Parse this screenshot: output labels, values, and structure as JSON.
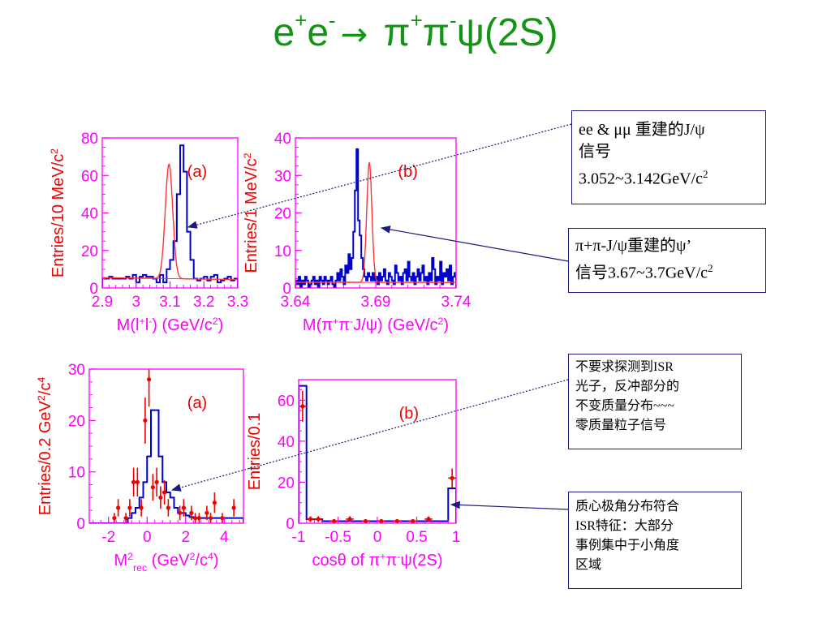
{
  "title": {
    "p1": "e",
    "s1": "+",
    "p2": "e",
    "s2": "-",
    "arrow": "→",
    "p3": " π",
    "s3": "+",
    "p4": "π",
    "s4": "-",
    "p5": "ψ(2S)"
  },
  "annotations": {
    "n1": {
      "l1": "ee & μμ 重建的J/ψ",
      "l2": "信号",
      "l3": "3.052~3.142GeV/c",
      "l3sup": "2"
    },
    "n2": {
      "l1": "π+π-J/ψ重建的ψ’",
      "l2": "信号3.67~3.7GeV/c",
      "l2sup": "2"
    },
    "n3": {
      "lines": [
        "不要求探测到ISR",
        "光子，反冲部分的",
        "不变质量分布~~~",
        "零质量粒子信号"
      ]
    },
    "n4": {
      "lines": [
        "质心极角分布符合",
        "ISR特征：大部分",
        "事例集中于小角度",
        "区域"
      ]
    }
  },
  "colors": {
    "title": "#149414",
    "axis": "#ff00ff",
    "ylabel": "#ee0000",
    "hist": "#0000cc",
    "fit": "#ff3333",
    "points": "#ee0000",
    "arrow": "#1a1a7a"
  },
  "chart_data": [
    {
      "id": "jpsi-mass",
      "type": "histogram",
      "panel": "(a)",
      "xlabel": "M(l⁺l⁻) (GeV/c²)",
      "ylabel": "Entries/10 MeV/c²",
      "xlim": [
        2.9,
        3.3
      ],
      "ylim": [
        0,
        80
      ],
      "xticks": [
        2.9,
        3.0,
        3.1,
        3.2,
        3.3
      ],
      "xtick_labels": [
        "2.9",
        "3",
        "3.1",
        "3.2",
        "3.3"
      ],
      "yticks": [
        0,
        20,
        40,
        60,
        80
      ],
      "bin_width": 0.01,
      "counts": [
        5,
        5,
        6,
        5,
        5,
        5,
        5,
        6,
        5,
        7,
        3,
        6,
        7,
        6,
        6,
        5,
        3,
        7,
        3,
        10,
        15,
        25,
        50,
        76,
        62,
        30,
        15,
        5,
        4,
        5,
        6,
        4,
        6,
        7,
        3,
        4,
        5,
        6,
        4,
        5
      ],
      "fit": {
        "type": "gaussian+linear",
        "mean": 3.097,
        "sigma": 0.011,
        "amplitude": 61,
        "background": [
          5,
          2.5
        ]
      }
    },
    {
      "id": "psi2s-mass",
      "type": "histogram",
      "panel": "(b)",
      "xlabel": "M(π⁺π⁻J/ψ) (GeV/c²)",
      "ylabel": "Entries/1 MeV/c²",
      "xlim": [
        3.64,
        3.74
      ],
      "ylim": [
        0,
        40
      ],
      "xticks": [
        3.64,
        3.69,
        3.74
      ],
      "xtick_labels": [
        "3.64",
        "3.69",
        "3.74"
      ],
      "yticks": [
        0,
        10,
        20,
        30,
        40
      ],
      "bin_width": 0.001,
      "counts": [
        2,
        1,
        3,
        0,
        2,
        1,
        3,
        2,
        0,
        1,
        2,
        3,
        1,
        2,
        0,
        3,
        2,
        1,
        3,
        2,
        1,
        2,
        3,
        1,
        0,
        2,
        4,
        2,
        5,
        3,
        1,
        6,
        4,
        9,
        5,
        8,
        15,
        26,
        37,
        18,
        14,
        8,
        5,
        3,
        2,
        4,
        3,
        2,
        4,
        2,
        3,
        1,
        4,
        2,
        3,
        5,
        2,
        1,
        4,
        3,
        2,
        1,
        6,
        4,
        2,
        3,
        1,
        4,
        5,
        2,
        7,
        3,
        2,
        4,
        1,
        3,
        5,
        2,
        4,
        6,
        2,
        3,
        1,
        4,
        2,
        8,
        5,
        1,
        3,
        2,
        7,
        1,
        4,
        3,
        5,
        2,
        6,
        1,
        3,
        4
      ],
      "fit": {
        "type": "gaussian+linear",
        "mean": 3.686,
        "sigma": 0.0016,
        "amplitude": 32,
        "background": [
          1.5,
          0.5
        ]
      }
    },
    {
      "id": "recoil-mass",
      "type": "histogram",
      "panel": "(a)",
      "xlabel": "M²rec (GeV²/c⁴)",
      "ylabel": "Entries/0.2 GeV²/c⁴",
      "xlim": [
        -3,
        5
      ],
      "ylim": [
        0,
        30
      ],
      "xticks": [
        -2,
        0,
        2,
        4
      ],
      "xtick_labels": [
        "-2",
        "0",
        "2",
        "4"
      ],
      "yticks": [
        0,
        10,
        20,
        30
      ],
      "bin_width": 0.2,
      "mc": [
        0,
        0,
        0,
        0,
        0,
        0,
        0,
        0,
        0,
        0,
        1,
        2,
        3,
        5,
        8,
        13,
        22,
        22,
        13,
        8,
        6,
        5,
        3,
        2,
        2,
        1.5,
        1.2,
        1,
        1,
        1,
        1,
        1,
        1,
        1,
        1,
        1,
        1,
        1,
        1,
        1
      ],
      "data_x": [
        -1.7,
        -1.5,
        -1.1,
        -0.9,
        -0.7,
        -0.5,
        -0.3,
        -0.1,
        0.1,
        0.3,
        0.5,
        0.7,
        0.9,
        1.1,
        1.7,
        1.9,
        2.3,
        2.5,
        2.7,
        3.1,
        3.3,
        3.5,
        3.9,
        4.5
      ],
      "data_y": [
        1,
        3,
        1,
        3,
        8,
        8,
        3,
        20,
        28,
        7,
        8,
        5,
        6,
        3,
        2,
        3,
        2,
        1,
        1,
        2,
        1,
        4,
        1,
        3
      ],
      "data_err": [
        1,
        1.7,
        1,
        1.7,
        2.8,
        2.8,
        1.7,
        4.5,
        5.3,
        2.6,
        2.8,
        2.2,
        2.4,
        1.7,
        1.4,
        1.7,
        1.4,
        1,
        1,
        1.4,
        1,
        2,
        1,
        1.7
      ]
    },
    {
      "id": "costheta",
      "type": "histogram",
      "panel": "(b)",
      "xlabel": "cosθ of π⁺π⁻ψ(2S)",
      "ylabel": "Entries/0.1",
      "xlim": [
        -1,
        1
      ],
      "ylim": [
        0,
        70
      ],
      "xticks": [
        -1,
        -0.5,
        0,
        0.5,
        1
      ],
      "xtick_labels": [
        "-1",
        "-0.5",
        "0",
        "0.5",
        "1"
      ],
      "yticks": [
        0,
        20,
        40,
        60
      ],
      "bin_width": 0.1,
      "mc": [
        67,
        2,
        2,
        1,
        1,
        1,
        1,
        1,
        1,
        1,
        1,
        1,
        1,
        1,
        1,
        1,
        1,
        1,
        1,
        17
      ],
      "data_x": [
        -0.95,
        -0.85,
        -0.75,
        -0.55,
        -0.35,
        -0.15,
        0.05,
        0.25,
        0.45,
        0.65,
        0.95
      ],
      "data_y": [
        57,
        2,
        2,
        1,
        2,
        1,
        1,
        1,
        1,
        2,
        22
      ],
      "data_err": [
        7.5,
        1.4,
        1.4,
        1,
        1.4,
        1,
        1,
        1,
        1,
        1.4,
        4.7
      ]
    }
  ]
}
